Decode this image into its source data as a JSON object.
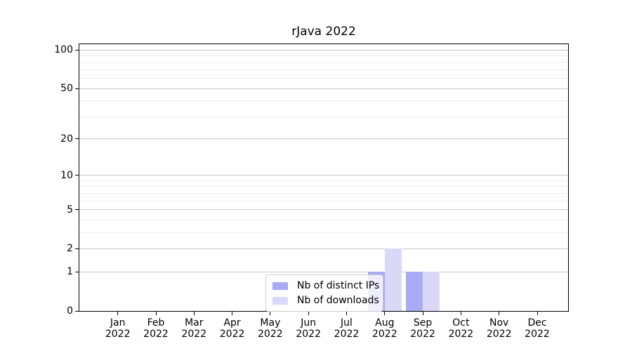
{
  "chart_data": {
    "type": "bar",
    "title": "rJava 2022",
    "xlabel": "",
    "ylabel": "",
    "categories": [
      "Jan 2022",
      "Feb 2022",
      "Mar 2022",
      "Apr 2022",
      "May 2022",
      "Jun 2022",
      "Jul 2022",
      "Aug 2022",
      "Sep 2022",
      "Oct 2022",
      "Nov 2022",
      "Dec 2022"
    ],
    "series": [
      {
        "name": "Nb of distinct IPs",
        "color": "#aaaaf5",
        "values": [
          0,
          0,
          0,
          0,
          0,
          0,
          0,
          1,
          1,
          0,
          0,
          0
        ]
      },
      {
        "name": "Nb of downloads",
        "color": "#d9d9f7",
        "values": [
          0,
          0,
          0,
          0,
          0,
          0,
          0,
          2,
          1,
          0,
          0,
          0
        ]
      }
    ],
    "yscale": "log1p",
    "ylim": [
      0,
      110
    ],
    "yticks": [
      0,
      1,
      2,
      5,
      10,
      20,
      50,
      100
    ],
    "minor_gridlines": [
      3,
      4,
      6,
      7,
      8,
      9,
      30,
      40,
      60,
      70,
      80,
      90
    ],
    "grid": "horizontal",
    "legend_position": "bottom-center"
  },
  "colors": {
    "background": "#ffffff",
    "axis": "#000000",
    "grid_major": "#c8c8c8",
    "grid_minor": "#ececec",
    "legend_border": "#cccccc",
    "bar_distinct_ips": "#aaaaf5",
    "bar_downloads": "#d9d9f7"
  }
}
